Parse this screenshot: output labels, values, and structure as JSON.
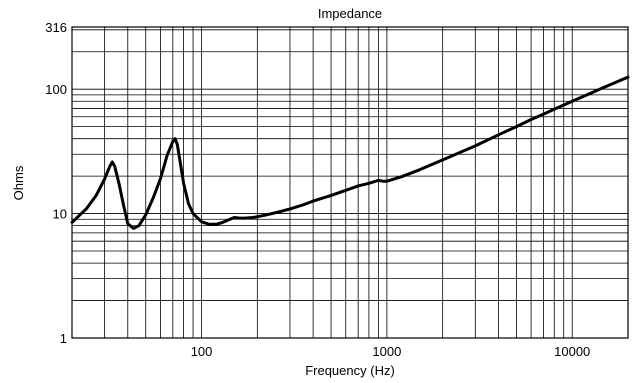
{
  "chart_data": {
    "type": "line",
    "title": "Impedance",
    "xlabel": "Frequency (Hz)",
    "ylabel": "Ohms",
    "x_scale": "log",
    "y_scale": "log",
    "xlim": [
      20,
      20000
    ],
    "ylim": [
      1,
      316
    ],
    "x_tick_labels": [
      {
        "value": 100,
        "label": "100"
      },
      {
        "value": 1000,
        "label": "1000"
      },
      {
        "value": 10000,
        "label": "10000"
      }
    ],
    "y_tick_labels": [
      {
        "value": 1,
        "label": "1"
      },
      {
        "value": 10,
        "label": "10"
      },
      {
        "value": 100,
        "label": "100"
      },
      {
        "value": 316,
        "label": "316"
      }
    ],
    "grid": true,
    "line_color": "#000000",
    "series": [
      {
        "x": [
          20,
          24,
          27,
          30,
          32,
          33,
          34,
          36,
          38,
          40,
          43,
          46,
          50,
          55,
          60,
          65,
          70,
          72,
          74,
          76,
          80,
          85,
          90,
          100,
          110,
          120,
          130,
          140,
          150,
          160,
          170,
          190,
          220,
          260,
          300,
          350,
          400,
          500,
          600,
          700,
          800,
          900,
          950,
          1000,
          1200,
          1500,
          2000,
          3000,
          4000,
          5000,
          6000,
          7000,
          8000,
          10000,
          12000,
          15000,
          20000
        ],
        "y": [
          8.5,
          11,
          14,
          19,
          24,
          26,
          24,
          17,
          11.5,
          8.3,
          7.6,
          8,
          9.8,
          13.5,
          19,
          29,
          38,
          40,
          36,
          28,
          17.5,
          12,
          10,
          8.6,
          8.2,
          8.2,
          8.5,
          8.9,
          9.3,
          9.2,
          9.2,
          9.3,
          9.7,
          10.3,
          10.9,
          11.7,
          12.6,
          14,
          15.4,
          16.7,
          17.5,
          18.5,
          18.2,
          18.2,
          19.8,
          22.5,
          27,
          35,
          43,
          50,
          57,
          63,
          69,
          80,
          90,
          104,
          125
        ]
      }
    ]
  }
}
